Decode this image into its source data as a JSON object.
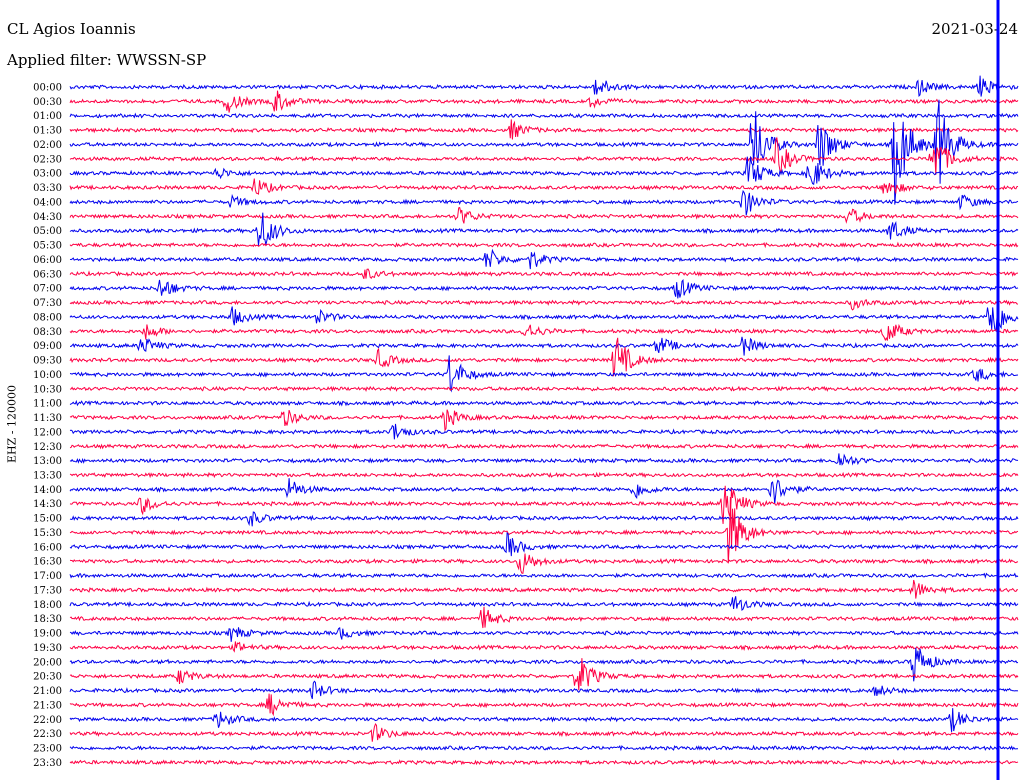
{
  "header": {
    "station": "CL Agios Ioannis",
    "filter": "Applied filter: WWSSN-SP",
    "date": "2021-03-24"
  },
  "chart_data": {
    "type": "line",
    "title": "CL Agios Ioannis",
    "subtitle": "Applied filter: WWSSN-SP",
    "ylabel": "EHZ - 120000",
    "colors": [
      "#0000ee",
      "#ff0044"
    ],
    "current_time_marker_color": "#0000ff",
    "rows": [
      {
        "time": "00:00",
        "events": [
          {
            "x": 0.555,
            "amp": 12
          },
          {
            "x": 0.895,
            "amp": 8
          },
          {
            "x": 0.96,
            "amp": 10
          }
        ]
      },
      {
        "time": "00:30",
        "events": [
          {
            "x": 0.165,
            "amp": 12
          },
          {
            "x": 0.215,
            "amp": 14
          },
          {
            "x": 0.55,
            "amp": 6
          }
        ]
      },
      {
        "time": "01:00",
        "events": []
      },
      {
        "time": "01:30",
        "events": [
          {
            "x": 0.465,
            "amp": 10
          }
        ]
      },
      {
        "time": "02:00",
        "events": [
          {
            "x": 0.72,
            "amp": 45
          },
          {
            "x": 0.79,
            "amp": 30
          },
          {
            "x": 0.87,
            "amp": 60
          },
          {
            "x": 0.915,
            "amp": 50
          }
        ]
      },
      {
        "time": "02:30",
        "events": [
          {
            "x": 0.745,
            "amp": 20
          },
          {
            "x": 0.91,
            "amp": 30
          }
        ]
      },
      {
        "time": "03:00",
        "events": [
          {
            "x": 0.155,
            "amp": 6
          },
          {
            "x": 0.715,
            "amp": 20
          },
          {
            "x": 0.78,
            "amp": 20
          }
        ]
      },
      {
        "time": "03:30",
        "events": [
          {
            "x": 0.195,
            "amp": 10
          },
          {
            "x": 0.86,
            "amp": 10
          }
        ]
      },
      {
        "time": "04:00",
        "events": [
          {
            "x": 0.17,
            "amp": 6
          },
          {
            "x": 0.71,
            "amp": 16
          },
          {
            "x": 0.94,
            "amp": 8
          }
        ]
      },
      {
        "time": "04:30",
        "events": [
          {
            "x": 0.41,
            "amp": 10
          },
          {
            "x": 0.82,
            "amp": 10
          }
        ]
      },
      {
        "time": "05:00",
        "events": [
          {
            "x": 0.2,
            "amp": 25
          },
          {
            "x": 0.865,
            "amp": 12
          }
        ]
      },
      {
        "time": "05:30",
        "events": []
      },
      {
        "time": "06:00",
        "events": [
          {
            "x": 0.44,
            "amp": 12
          },
          {
            "x": 0.485,
            "amp": 10
          }
        ]
      },
      {
        "time": "06:30",
        "events": [
          {
            "x": 0.31,
            "amp": 6
          }
        ]
      },
      {
        "time": "07:00",
        "events": [
          {
            "x": 0.095,
            "amp": 12
          },
          {
            "x": 0.64,
            "amp": 12
          }
        ]
      },
      {
        "time": "07:30",
        "events": [
          {
            "x": 0.825,
            "amp": 6
          }
        ]
      },
      {
        "time": "08:00",
        "events": [
          {
            "x": 0.17,
            "amp": 10
          },
          {
            "x": 0.26,
            "amp": 8
          },
          {
            "x": 0.97,
            "amp": 30
          }
        ]
      },
      {
        "time": "08:30",
        "events": [
          {
            "x": 0.08,
            "amp": 8
          },
          {
            "x": 0.48,
            "amp": 10
          },
          {
            "x": 0.86,
            "amp": 14
          }
        ]
      },
      {
        "time": "09:00",
        "events": [
          {
            "x": 0.075,
            "amp": 10
          },
          {
            "x": 0.62,
            "amp": 10
          },
          {
            "x": 0.71,
            "amp": 10
          }
        ]
      },
      {
        "time": "09:30",
        "events": [
          {
            "x": 0.325,
            "amp": 10
          },
          {
            "x": 0.575,
            "amp": 28
          }
        ]
      },
      {
        "time": "10:00",
        "events": [
          {
            "x": 0.4,
            "amp": 22
          },
          {
            "x": 0.955,
            "amp": 8
          }
        ]
      },
      {
        "time": "10:30",
        "events": []
      },
      {
        "time": "11:00",
        "events": []
      },
      {
        "time": "11:30",
        "events": [
          {
            "x": 0.225,
            "amp": 10
          },
          {
            "x": 0.395,
            "amp": 12
          }
        ]
      },
      {
        "time": "12:00",
        "events": [
          {
            "x": 0.34,
            "amp": 10
          }
        ]
      },
      {
        "time": "12:30",
        "events": []
      },
      {
        "time": "13:00",
        "events": [
          {
            "x": 0.81,
            "amp": 10
          }
        ]
      },
      {
        "time": "13:30",
        "events": []
      },
      {
        "time": "14:00",
        "events": [
          {
            "x": 0.23,
            "amp": 12
          },
          {
            "x": 0.595,
            "amp": 10
          },
          {
            "x": 0.74,
            "amp": 18
          }
        ]
      },
      {
        "time": "14:30",
        "events": [
          {
            "x": 0.075,
            "amp": 10
          },
          {
            "x": 0.69,
            "amp": 30
          }
        ]
      },
      {
        "time": "15:00",
        "events": [
          {
            "x": 0.19,
            "amp": 8
          }
        ]
      },
      {
        "time": "15:30",
        "events": [
          {
            "x": 0.695,
            "amp": 40
          }
        ]
      },
      {
        "time": "16:00",
        "events": [
          {
            "x": 0.46,
            "amp": 14
          }
        ]
      },
      {
        "time": "16:30",
        "events": [
          {
            "x": 0.475,
            "amp": 14
          }
        ]
      },
      {
        "time": "17:00",
        "events": []
      },
      {
        "time": "17:30",
        "events": [
          {
            "x": 0.89,
            "amp": 10
          }
        ]
      },
      {
        "time": "18:00",
        "events": [
          {
            "x": 0.7,
            "amp": 10
          }
        ]
      },
      {
        "time": "18:30",
        "events": [
          {
            "x": 0.435,
            "amp": 12
          }
        ]
      },
      {
        "time": "19:00",
        "events": [
          {
            "x": 0.17,
            "amp": 8
          },
          {
            "x": 0.285,
            "amp": 6
          }
        ]
      },
      {
        "time": "19:30",
        "events": [
          {
            "x": 0.175,
            "amp": 5
          }
        ]
      },
      {
        "time": "20:00",
        "events": [
          {
            "x": 0.89,
            "amp": 22
          }
        ]
      },
      {
        "time": "20:30",
        "events": [
          {
            "x": 0.115,
            "amp": 8
          },
          {
            "x": 0.535,
            "amp": 26
          }
        ]
      },
      {
        "time": "21:00",
        "events": [
          {
            "x": 0.255,
            "amp": 10
          },
          {
            "x": 0.85,
            "amp": 6
          }
        ]
      },
      {
        "time": "21:30",
        "events": [
          {
            "x": 0.21,
            "amp": 12
          }
        ]
      },
      {
        "time": "22:00",
        "events": [
          {
            "x": 0.155,
            "amp": 10
          },
          {
            "x": 0.93,
            "amp": 12
          }
        ]
      },
      {
        "time": "22:30",
        "events": [
          {
            "x": 0.32,
            "amp": 10
          }
        ]
      },
      {
        "time": "23:00",
        "events": []
      },
      {
        "time": "23:30",
        "events": []
      }
    ]
  }
}
